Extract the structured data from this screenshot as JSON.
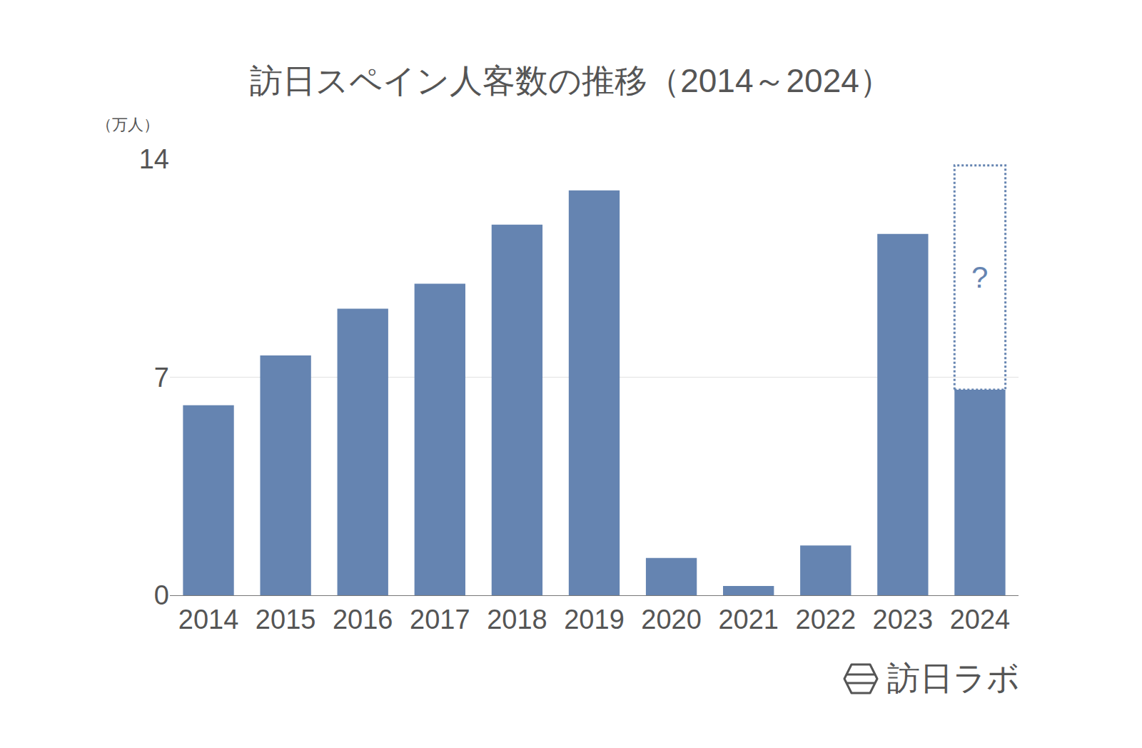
{
  "chart_data": {
    "type": "bar",
    "title": "訪日スペイン人客数の推移（2014～2024）",
    "y_label": "（万人）",
    "categories": [
      "2014",
      "2015",
      "2016",
      "2017",
      "2018",
      "2019",
      "2020",
      "2021",
      "2022",
      "2023",
      "2024"
    ],
    "values": [
      6.1,
      7.7,
      9.2,
      10.0,
      11.9,
      13.0,
      1.2,
      0.3,
      1.6,
      11.6,
      6.6
    ],
    "projected_values": [
      null,
      null,
      null,
      null,
      null,
      null,
      null,
      null,
      null,
      null,
      13.8
    ],
    "color": "#6584b1",
    "ylim": [
      0,
      14
    ],
    "yticks": [
      0,
      7,
      14
    ],
    "grid": true,
    "annotations": [
      {
        "text": "?",
        "category": "2024",
        "y": 10.2
      }
    ],
    "source": "訪日ラボ"
  }
}
